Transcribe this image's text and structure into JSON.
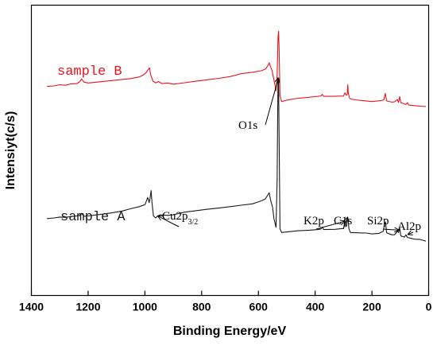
{
  "chart_data": {
    "type": "line",
    "title": "",
    "xlabel": "Binding Energy/eV",
    "ylabel": "Intensiyt(c/s)",
    "xlim": [
      1400,
      0
    ],
    "x_reversed": true,
    "xticks": [
      1400,
      1200,
      1000,
      800,
      600,
      400,
      200,
      0
    ],
    "ylim": [
      0,
      100
    ],
    "yticks_shown": false,
    "grid": false,
    "legend": "none",
    "series": [
      {
        "name": "sample B",
        "color": "#e8141b",
        "points": [
          [
            1345,
            72.0
          ],
          [
            1320,
            72.2
          ],
          [
            1300,
            72.6
          ],
          [
            1280,
            72.4
          ],
          [
            1260,
            72.9
          ],
          [
            1240,
            73.0
          ],
          [
            1230,
            73.6
          ],
          [
            1223,
            74.6
          ],
          [
            1215,
            73.5
          ],
          [
            1200,
            73.2
          ],
          [
            1160,
            73.6
          ],
          [
            1120,
            74.0
          ],
          [
            1080,
            74.4
          ],
          [
            1050,
            74.7
          ],
          [
            1020,
            75.3
          ],
          [
            1005,
            76.0
          ],
          [
            995,
            76.8
          ],
          [
            990,
            77.6
          ],
          [
            984,
            78.4
          ],
          [
            979,
            75.8
          ],
          [
            972,
            73.9
          ],
          [
            962,
            73.2
          ],
          [
            952,
            73.7
          ],
          [
            940,
            73.0
          ],
          [
            920,
            73.2
          ],
          [
            900,
            72.8
          ],
          [
            860,
            73.3
          ],
          [
            820,
            73.8
          ],
          [
            780,
            74.3
          ],
          [
            740,
            74.8
          ],
          [
            700,
            75.4
          ],
          [
            660,
            76.4
          ],
          [
            620,
            76.9
          ],
          [
            590,
            77.4
          ],
          [
            575,
            78.0
          ],
          [
            566,
            79.3
          ],
          [
            562,
            80.2
          ],
          [
            558,
            79.0
          ],
          [
            552,
            77.5
          ],
          [
            544,
            73.7
          ],
          [
            538,
            70.5
          ],
          [
            534,
            75.8
          ],
          [
            531,
            89.0
          ],
          [
            529,
            91.0
          ],
          [
            527,
            85.0
          ],
          [
            524,
            68.8
          ],
          [
            518,
            66.8
          ],
          [
            500,
            67.3
          ],
          [
            470,
            67.8
          ],
          [
            440,
            68.1
          ],
          [
            400,
            68.5
          ],
          [
            380,
            68.7
          ],
          [
            375,
            69.3
          ],
          [
            370,
            68.6
          ],
          [
            340,
            68.6
          ],
          [
            300,
            68.7
          ],
          [
            295,
            69.8
          ],
          [
            290,
            69.0
          ],
          [
            287,
            69.3
          ],
          [
            285,
            72.6
          ],
          [
            283,
            69.6
          ],
          [
            278,
            67.8
          ],
          [
            260,
            67.4
          ],
          [
            230,
            67.1
          ],
          [
            200,
            66.8
          ],
          [
            170,
            67.1
          ],
          [
            158,
            67.4
          ],
          [
            153,
            69.6
          ],
          [
            148,
            67.0
          ],
          [
            130,
            66.6
          ],
          [
            120,
            66.7
          ],
          [
            110,
            67.5
          ],
          [
            106,
            66.5
          ],
          [
            102,
            68.5
          ],
          [
            98,
            66.4
          ],
          [
            80,
            65.8
          ],
          [
            75,
            66.4
          ],
          [
            70,
            65.6
          ],
          [
            50,
            65.4
          ],
          [
            30,
            65.2
          ],
          [
            10,
            65.1
          ]
        ]
      },
      {
        "name": "sample A",
        "color": "#1a1a1a",
        "points": [
          [
            1345,
            26.5
          ],
          [
            1320,
            26.7
          ],
          [
            1300,
            27.0
          ],
          [
            1280,
            26.9
          ],
          [
            1260,
            27.2
          ],
          [
            1240,
            27.4
          ],
          [
            1230,
            27.6
          ],
          [
            1223,
            28.3
          ],
          [
            1215,
            27.3
          ],
          [
            1200,
            27.4
          ],
          [
            1160,
            27.9
          ],
          [
            1120,
            28.4
          ],
          [
            1080,
            29.1
          ],
          [
            1050,
            29.9
          ],
          [
            1020,
            30.6
          ],
          [
            1000,
            31.3
          ],
          [
            995,
            32.4
          ],
          [
            990,
            33.8
          ],
          [
            985,
            32.0
          ],
          [
            982,
            33.4
          ],
          [
            978,
            36.1
          ],
          [
            975,
            32.0
          ],
          [
            970,
            27.4
          ],
          [
            962,
            26.7
          ],
          [
            955,
            27.4
          ],
          [
            945,
            27.8
          ],
          [
            920,
            27.6
          ],
          [
            900,
            27.8
          ],
          [
            860,
            28.7
          ],
          [
            820,
            29.2
          ],
          [
            780,
            29.7
          ],
          [
            740,
            30.1
          ],
          [
            700,
            30.6
          ],
          [
            660,
            31.1
          ],
          [
            620,
            31.6
          ],
          [
            590,
            32.6
          ],
          [
            575,
            33.3
          ],
          [
            566,
            34.8
          ],
          [
            562,
            35.4
          ],
          [
            558,
            33.3
          ],
          [
            550,
            30.3
          ],
          [
            545,
            26.3
          ],
          [
            538,
            23.5
          ],
          [
            534,
            40.0
          ],
          [
            531,
            75.0
          ],
          [
            529,
            74.0
          ],
          [
            527,
            54.0
          ],
          [
            524,
            22.9
          ],
          [
            518,
            21.7
          ],
          [
            500,
            21.9
          ],
          [
            460,
            22.3
          ],
          [
            420,
            22.5
          ],
          [
            390,
            22.7
          ],
          [
            380,
            22.9
          ],
          [
            375,
            23.6
          ],
          [
            370,
            22.7
          ],
          [
            330,
            22.8
          ],
          [
            300,
            23.1
          ],
          [
            295,
            25.6
          ],
          [
            292,
            23.7
          ],
          [
            289,
            24.0
          ],
          [
            286,
            27.0
          ],
          [
            284,
            26.2
          ],
          [
            281,
            23.1
          ],
          [
            276,
            21.7
          ],
          [
            250,
            21.6
          ],
          [
            220,
            21.5
          ],
          [
            200,
            21.2
          ],
          [
            175,
            21.4
          ],
          [
            160,
            22.1
          ],
          [
            156,
            24.4
          ],
          [
            152,
            25.3
          ],
          [
            148,
            21.6
          ],
          [
            130,
            20.9
          ],
          [
            120,
            20.9
          ],
          [
            110,
            22.2
          ],
          [
            106,
            21.7
          ],
          [
            102,
            23.2
          ],
          [
            98,
            20.5
          ],
          [
            85,
            20.1
          ],
          [
            80,
            20.9
          ],
          [
            75,
            20.0
          ],
          [
            50,
            19.4
          ],
          [
            30,
            19.3
          ],
          [
            20,
            19.0
          ],
          [
            10,
            18.7
          ]
        ]
      }
    ],
    "annotations": [
      {
        "text": "sample B",
        "color": "#e8141b"
      },
      {
        "text": "sample A",
        "color": "#1a1a1a"
      },
      {
        "text": "O1s",
        "arrow_to": [
          529,
          75.0
        ]
      },
      {
        "text": "Cu2p",
        "sub": "3/2",
        "arrow_to": [
          955,
          27.4
        ]
      },
      {
        "text": "K2p",
        "arrow_to": [
          295,
          25.6
        ]
      },
      {
        "text": "C1s",
        "arrow_to": [
          285,
          27.0
        ]
      },
      {
        "text": "Si2p",
        "arrow_to": [
          104,
          22.5
        ]
      },
      {
        "text": "Al2p",
        "arrow_to": [
          74,
          21.0
        ]
      }
    ]
  }
}
